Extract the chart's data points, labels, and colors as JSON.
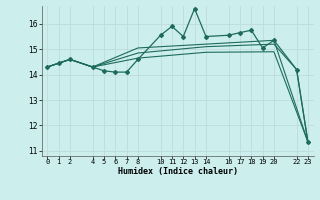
{
  "xlabel": "Humidex (Indice chaleur)",
  "background_color": "#cceeed",
  "grid_color": "#c0dede",
  "line_color": "#1e6b5e",
  "xlim": [
    -0.5,
    23.5
  ],
  "ylim": [
    10.8,
    16.7
  ],
  "yticks": [
    11,
    12,
    13,
    14,
    15,
    16
  ],
  "xticks": [
    0,
    1,
    2,
    4,
    5,
    6,
    7,
    8,
    10,
    11,
    12,
    13,
    14,
    16,
    17,
    18,
    19,
    20,
    22,
    23
  ],
  "line1_x": [
    0,
    1,
    2,
    4,
    5,
    6,
    7,
    8,
    10,
    11,
    12,
    13,
    14,
    16,
    17,
    18,
    19,
    20,
    22,
    23
  ],
  "line1_y": [
    14.3,
    14.45,
    14.6,
    14.3,
    14.15,
    14.1,
    14.1,
    14.6,
    15.55,
    15.9,
    15.5,
    16.6,
    15.5,
    15.55,
    15.65,
    15.75,
    15.05,
    15.35,
    14.2,
    11.35
  ],
  "line2_x": [
    0,
    2,
    4,
    8,
    14,
    20,
    22,
    23
  ],
  "line2_y": [
    14.3,
    14.6,
    14.3,
    14.85,
    15.1,
    15.2,
    14.2,
    11.35
  ],
  "line3_x": [
    0,
    2,
    4,
    8,
    14,
    20,
    23
  ],
  "line3_y": [
    14.3,
    14.6,
    14.3,
    15.05,
    15.2,
    15.35,
    11.35
  ],
  "line4_x": [
    0,
    2,
    4,
    8,
    14,
    20,
    23
  ],
  "line4_y": [
    14.3,
    14.6,
    14.3,
    14.65,
    14.88,
    14.9,
    11.35
  ]
}
